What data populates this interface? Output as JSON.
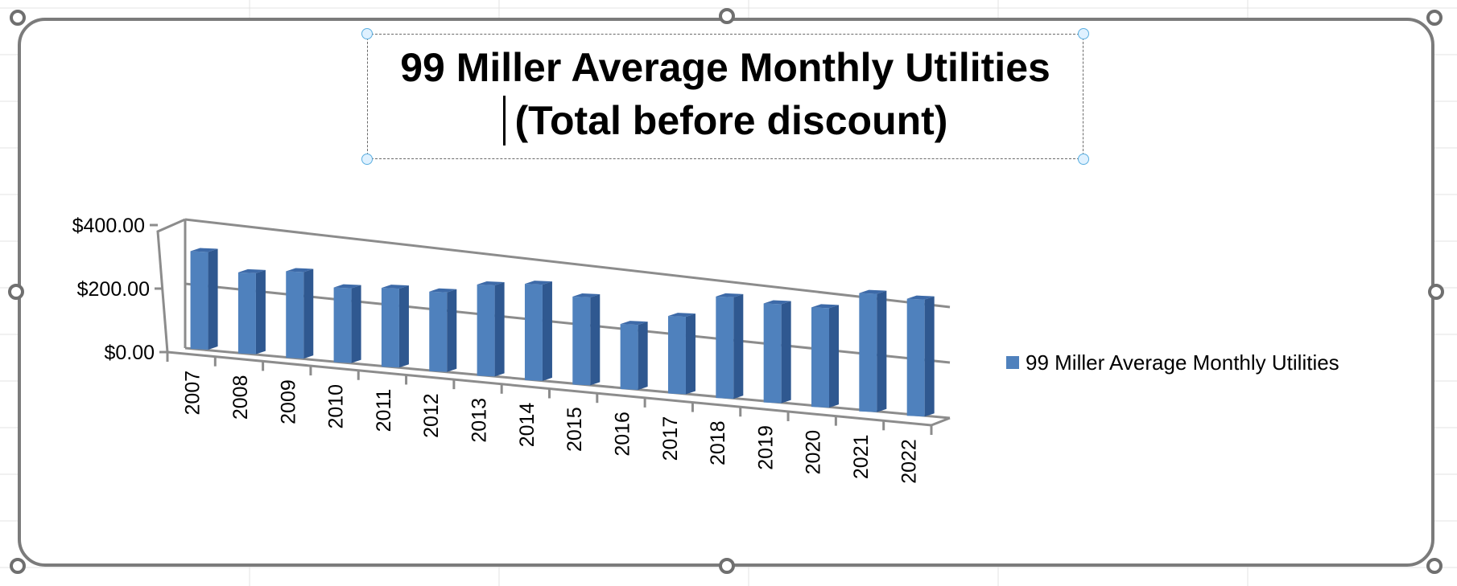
{
  "chart_data": {
    "type": "bar",
    "title": "99 Miller Average Monthly Utilities",
    "subtitle": "(Total before discount)",
    "categories": [
      "2007",
      "2008",
      "2009",
      "2010",
      "2011",
      "2012",
      "2013",
      "2014",
      "2015",
      "2016",
      "2017",
      "2018",
      "2019",
      "2020",
      "2021",
      "2022"
    ],
    "series": [
      {
        "name": "99 Miller Average Monthly Utilities",
        "color": "#4f81bd",
        "values": [
          305,
          255,
          275,
          240,
          255,
          260,
          300,
          320,
          295,
          220,
          265,
          350,
          345,
          350,
          420,
          420
        ]
      }
    ],
    "ylim": [
      0,
      400
    ],
    "yticks": [
      "$0.00",
      "$200.00",
      "$400.00"
    ],
    "ytick_values": [
      0,
      200,
      400
    ],
    "grid": true,
    "legend_position": "right",
    "style": "3d-column"
  }
}
